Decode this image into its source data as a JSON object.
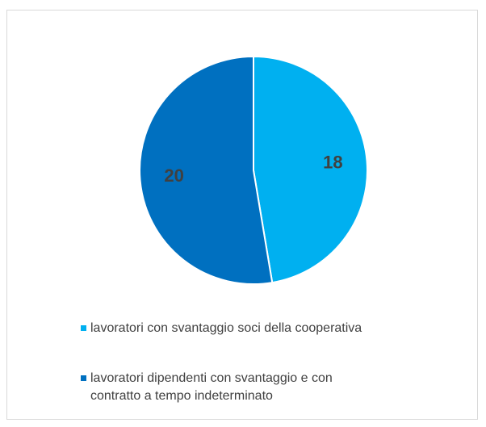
{
  "chart_data": {
    "type": "pie",
    "categories": [
      "lavoratori con svantaggio soci della cooperativa",
      "lavoratori dipendenti con svantaggio e con contratto a tempo indeterminato"
    ],
    "values": [
      18,
      20
    ],
    "colors": [
      "#00b0f0",
      "#0070c0"
    ],
    "legend": "bottom"
  }
}
